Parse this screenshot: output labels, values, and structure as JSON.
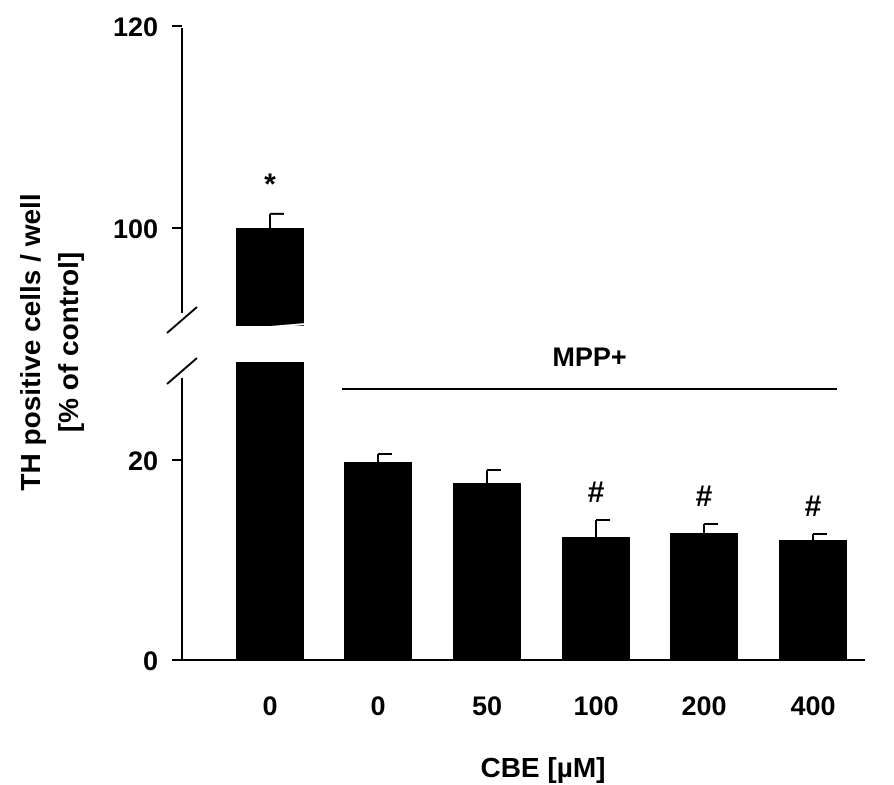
{
  "chart_data": {
    "type": "bar",
    "categories": [
      "0",
      "0",
      "50",
      "100",
      "200",
      "400"
    ],
    "values": [
      100,
      19.8,
      17.7,
      12.3,
      12.7,
      12.0
    ],
    "errors": [
      1.4,
      0.8,
      1.3,
      1.7,
      0.9,
      0.6
    ],
    "significance": [
      "*",
      "",
      "",
      "#",
      "#",
      "#"
    ],
    "bar_color": "#000000",
    "xlabel": "CBE [µM]",
    "ylabel": [
      "TH positive cells / well",
      "[% of control]"
    ],
    "yticks": [
      "0",
      "20",
      "100",
      "120"
    ],
    "ylim": [
      0,
      120
    ],
    "y_axis_break": [
      28,
      86
    ],
    "group_label": "MPP+",
    "group_bars": [
      1,
      5
    ],
    "grid": false,
    "legend": false
  }
}
